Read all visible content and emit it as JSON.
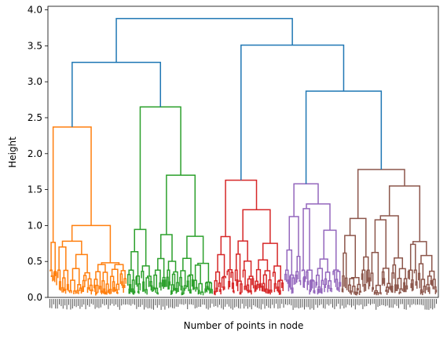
{
  "chart_data": {
    "type": "dendrogram",
    "title": "",
    "xlabel": "Number of points in node",
    "ylabel": "Height",
    "ylim": [
      0,
      4.05
    ],
    "yticks": [
      "0.0",
      "0.5",
      "1.0",
      "1.5",
      "2.0",
      "2.5",
      "3.0",
      "3.5",
      "4.0"
    ],
    "grid": false,
    "legend": "none",
    "colors": {
      "above_threshold": "#1f77b4",
      "cluster_1": "#ff7f0e",
      "cluster_2": "#2ca02c",
      "cluster_3": "#d62728",
      "cluster_4": "#9467bd",
      "cluster_5": "#8c564b"
    },
    "top_merges": [
      {
        "height": 3.88,
        "joins": [
          "left group",
          "right group"
        ]
      },
      {
        "height": 3.27,
        "joins": [
          "cluster_1",
          "cluster_2"
        ]
      },
      {
        "height": 3.51,
        "joins": [
          "cluster_3",
          "right subgroup"
        ]
      },
      {
        "height": 2.87,
        "joins": [
          "cluster_4",
          "cluster_5"
        ]
      }
    ],
    "clusters": [
      {
        "color": "#ff7f0e",
        "root_height": 2.37,
        "inner_heights": [
          1.0,
          0.85,
          0.7,
          0.65,
          0.55,
          0.45,
          0.35,
          0.3,
          0.25
        ]
      },
      {
        "color": "#2ca02c",
        "root_height": 2.65,
        "inner_heights": [
          1.7,
          1.05,
          0.88,
          0.65,
          0.55,
          0.45,
          0.35,
          0.3,
          0.25
        ]
      },
      {
        "color": "#d62728",
        "root_height": 1.63,
        "inner_heights": [
          1.22,
          0.94,
          0.7,
          0.6,
          0.55,
          0.45,
          0.35,
          0.3,
          0.25
        ]
      },
      {
        "color": "#9467bd",
        "root_height": 1.58,
        "inner_heights": [
          1.3,
          1.25,
          1.0,
          0.66,
          0.55,
          0.45,
          0.35,
          0.3,
          0.25
        ]
      },
      {
        "color": "#8c564b",
        "root_height": 1.78,
        "inner_heights": [
          1.55,
          1.22,
          1.12,
          1.06,
          0.85,
          0.6,
          0.45,
          0.35,
          0.25
        ]
      }
    ]
  }
}
